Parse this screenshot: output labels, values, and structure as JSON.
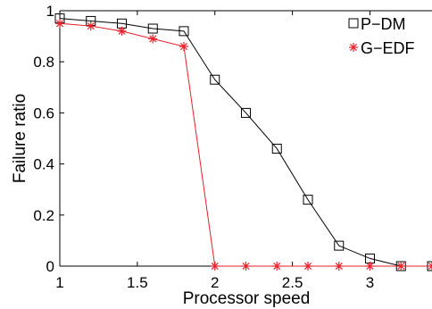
{
  "chart_data": {
    "type": "line",
    "xlabel": "Processor speed",
    "ylabel": "Failure ratio",
    "xlim": [
      1,
      3.4
    ],
    "ylim": [
      0,
      1
    ],
    "x_ticks": [
      "1",
      "1.5",
      "2",
      "2.5",
      "3"
    ],
    "y_ticks": [
      "0",
      "0.2",
      "0.4",
      "0.6",
      "0.8",
      "1"
    ],
    "x_tick_values": [
      1,
      1.5,
      2,
      2.5,
      3
    ],
    "y_tick_values": [
      0,
      0.2,
      0.4,
      0.6,
      0.8,
      1
    ],
    "grid": false,
    "legend_position": "top-right",
    "series": [
      {
        "name": "P−DM",
        "color": "#000000",
        "marker": "square",
        "x": [
          1.0,
          1.2,
          1.4,
          1.6,
          1.8,
          2.0,
          2.2,
          2.4,
          2.6,
          2.8,
          3.0,
          3.2,
          3.4
        ],
        "y": [
          0.97,
          0.96,
          0.95,
          0.93,
          0.92,
          0.73,
          0.6,
          0.46,
          0.26,
          0.08,
          0.03,
          0.0,
          0.0
        ]
      },
      {
        "name": "G−EDF",
        "color": "#e8202a",
        "marker": "asterisk",
        "x": [
          1.0,
          1.2,
          1.4,
          1.6,
          1.8,
          2.0,
          2.2,
          2.4,
          2.6,
          2.8,
          3.0,
          3.2,
          3.4
        ],
        "y": [
          0.95,
          0.94,
          0.92,
          0.89,
          0.86,
          0.0,
          0.0,
          0.0,
          0.0,
          0.0,
          0.0,
          0.0,
          0.0
        ]
      }
    ]
  }
}
